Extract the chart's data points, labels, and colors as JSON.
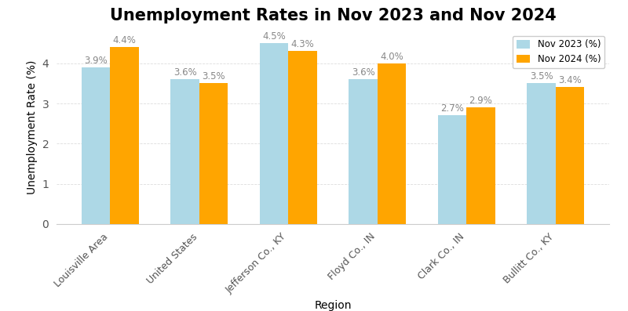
{
  "title": "Unemployment Rates in Nov 2023 and Nov 2024",
  "xlabel": "Region",
  "ylabel": "Unemployment Rate (%)",
  "categories": [
    "Louisville Area",
    "United States",
    "Jefferson Co., KY",
    "Floyd Co., IN",
    "Clark Co., IN",
    "Bullitt Co., KY"
  ],
  "nov2023": [
    3.9,
    3.6,
    4.5,
    3.6,
    2.7,
    3.5
  ],
  "nov2024": [
    4.4,
    3.5,
    4.3,
    4.0,
    2.9,
    3.4
  ],
  "color_2023": "#ADD8E6",
  "color_2024": "#FFA500",
  "legend_2023": "Nov 2023 (%)",
  "legend_2024": "Nov 2024 (%)",
  "ylim": [
    0,
    4.8
  ],
  "bar_width": 0.32,
  "title_fontsize": 15,
  "label_fontsize": 10,
  "tick_fontsize": 9,
  "annotation_fontsize": 8.5,
  "annotation_color": "#888888",
  "background_color": "#ffffff",
  "grid_color": "#dddddd"
}
